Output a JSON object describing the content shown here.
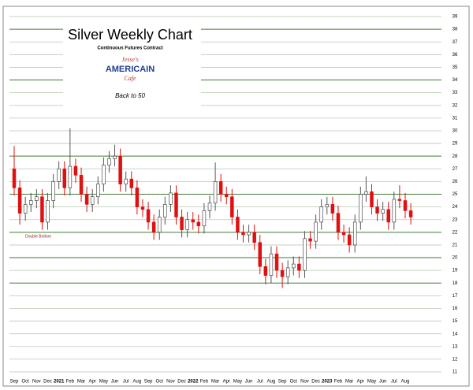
{
  "chart_data": {
    "type": "candlestick",
    "title": "Silver Weekly Chart",
    "subtitle": "Continuous Futures Contract",
    "logo": [
      "Jesse's",
      "AMERICAIN",
      "Cafe"
    ],
    "note": "Back to 50",
    "annotation": "Double Bottom",
    "categories": [
      "Sep",
      "Oct",
      "Nov",
      "Dec",
      "2021",
      "Feb",
      "Mar",
      "Apr",
      "May",
      "Jun",
      "Jul",
      "Aug",
      "Sep",
      "Oct",
      "Nov",
      "Dec",
      "2022",
      "Feb",
      "Mar",
      "Apr",
      "May",
      "Jun",
      "Jul",
      "Aug",
      "Sep",
      "Oct",
      "Nov",
      "Dec",
      "2023",
      "Feb",
      "Mar",
      "Apr",
      "May",
      "Jun",
      "Jul",
      "Aug"
    ],
    "open": [
      27.0,
      25.5,
      23.5,
      24.2,
      24.5,
      24.8,
      22.8,
      24.5,
      26.0,
      27.0,
      25.5,
      27.2,
      26.5,
      25.0,
      24.2,
      24.8,
      25.8,
      27.3,
      27.8,
      28.0,
      25.8,
      26.2,
      25.5,
      24.0,
      23.8,
      22.8,
      22.0,
      23.2,
      24.2,
      25.1,
      23.2,
      22.2,
      23.0,
      22.8,
      22.5,
      23.7,
      24.3,
      26.0,
      25.0,
      24.8,
      23.2,
      22.0,
      21.8,
      22.0,
      21.2,
      19.3,
      18.6,
      20.3,
      19.0,
      18.5,
      19.2,
      19.5,
      19.0,
      21.5,
      21.3,
      22.8,
      24.0,
      24.2,
      23.5,
      22.0,
      21.8,
      21.0,
      22.8,
      25.0,
      25.2,
      24.0,
      23.5,
      23.8,
      22.8,
      24.6,
      24.5,
      23.7
    ],
    "high": [
      28.8,
      26.1,
      24.8,
      25.1,
      25.4,
      25.4,
      25.1,
      26.6,
      27.6,
      27.6,
      30.2,
      27.8,
      27.1,
      25.6,
      25.4,
      26.4,
      27.9,
      28.4,
      28.9,
      28.6,
      26.8,
      26.8,
      26.1,
      24.6,
      24.4,
      23.4,
      23.8,
      24.8,
      25.7,
      25.7,
      23.8,
      23.6,
      23.6,
      23.4,
      24.3,
      24.9,
      27.5,
      26.6,
      25.6,
      25.4,
      23.8,
      22.6,
      22.6,
      22.6,
      21.8,
      19.9,
      20.9,
      20.9,
      19.6,
      19.8,
      20.1,
      20.1,
      22.1,
      22.1,
      23.4,
      24.6,
      24.8,
      24.8,
      24.1,
      22.6,
      22.4,
      23.4,
      25.6,
      26.4,
      25.8,
      24.6,
      24.4,
      24.4,
      25.2,
      25.7,
      25.1,
      24.3
    ],
    "low": [
      24.9,
      22.6,
      22.9,
      23.6,
      23.9,
      22.2,
      22.2,
      23.9,
      25.4,
      24.9,
      24.9,
      25.9,
      24.4,
      23.6,
      23.6,
      24.2,
      25.2,
      26.7,
      27.2,
      25.2,
      25.2,
      24.9,
      23.4,
      23.2,
      22.2,
      21.4,
      21.4,
      22.6,
      23.6,
      22.6,
      21.6,
      21.6,
      22.2,
      21.9,
      21.9,
      23.1,
      23.7,
      24.4,
      24.2,
      22.6,
      21.4,
      21.2,
      21.2,
      20.6,
      18.7,
      17.9,
      18.0,
      18.4,
      17.6,
      17.9,
      18.6,
      18.4,
      18.4,
      20.7,
      20.7,
      22.2,
      23.4,
      22.9,
      21.4,
      21.2,
      20.4,
      20.4,
      22.2,
      24.4,
      23.4,
      22.9,
      22.9,
      22.2,
      22.2,
      23.9,
      23.1,
      22.6
    ],
    "close": [
      25.5,
      23.5,
      24.2,
      24.5,
      24.8,
      22.8,
      24.5,
      26.0,
      27.0,
      25.5,
      27.2,
      26.5,
      25.0,
      24.2,
      24.8,
      25.8,
      27.3,
      27.8,
      28.0,
      25.8,
      26.2,
      25.5,
      24.0,
      23.8,
      22.8,
      22.0,
      23.2,
      24.2,
      25.1,
      23.2,
      22.2,
      23.0,
      22.8,
      22.5,
      23.7,
      24.3,
      26.0,
      25.0,
      24.8,
      23.2,
      22.0,
      21.8,
      22.0,
      21.2,
      19.3,
      18.6,
      20.3,
      19.0,
      18.5,
      19.2,
      19.5,
      19.0,
      21.5,
      21.3,
      22.8,
      24.0,
      24.2,
      23.5,
      22.0,
      21.8,
      21.0,
      22.8,
      25.0,
      25.2,
      24.0,
      23.5,
      23.8,
      22.8,
      24.6,
      24.5,
      23.7,
      23.2
    ],
    "up_color": "#ffffff",
    "down_color": "#e01010",
    "ylim": [
      11,
      39
    ],
    "yticks": [
      11,
      12,
      13,
      14,
      15,
      16,
      17,
      18,
      19,
      20,
      21,
      22,
      23,
      24,
      25,
      26,
      27,
      28,
      29,
      30,
      31,
      32,
      33,
      34,
      35,
      36,
      37,
      38,
      39
    ],
    "grid": true,
    "grid_color": "#b9c9b2",
    "strong_levels": [
      18,
      20,
      22,
      25,
      28,
      34,
      38
    ],
    "strong_color": "#3f7a36"
  }
}
